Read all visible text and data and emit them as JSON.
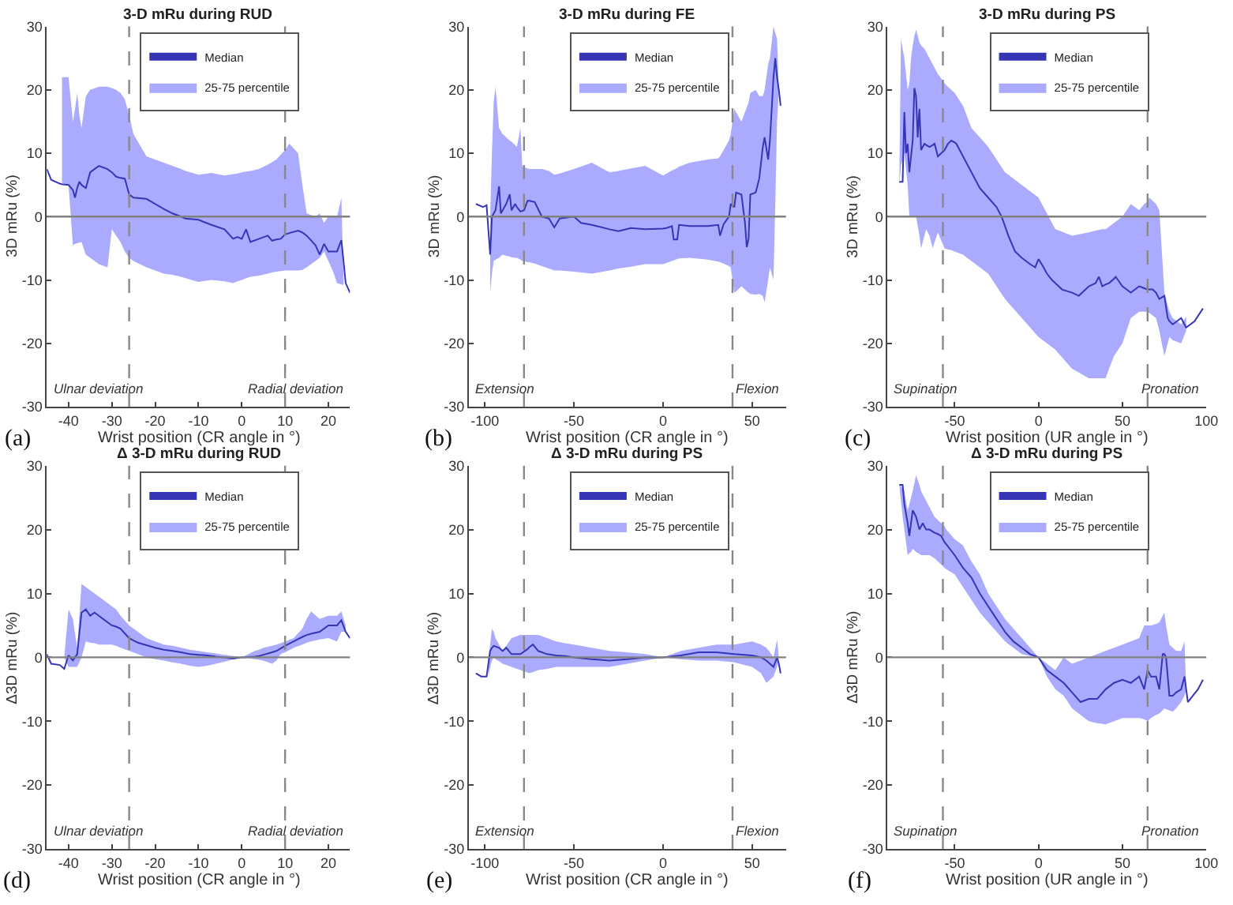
{
  "chart_data": [
    {
      "type": "line",
      "title": "3-D mRu during RUD",
      "xlabel": "Wrist position (CR angle in °)",
      "ylabel": "3D mRu (%)",
      "xlim": [
        -45,
        25
      ],
      "xticks": [
        -40,
        -30,
        -20,
        -10,
        0,
        10,
        20
      ],
      "ylim": [
        -30,
        30
      ],
      "yticks": [
        -30,
        -20,
        -10,
        0,
        10,
        20,
        30
      ],
      "grid": false,
      "legend": "top",
      "annotations": [
        "Ulnar deviation",
        "Radial deviation",
        "(a)"
      ],
      "ref_lines": [
        {
          "axis": "x",
          "value": -26,
          "color": "#888888",
          "line_style": "dashed"
        },
        {
          "axis": "x",
          "value": 10,
          "color": "#888888",
          "line_style": "dashed"
        },
        {
          "axis": "y",
          "value": 0,
          "color": "#808080",
          "line_style": "solid"
        }
      ],
      "series": [
        {
          "name": "Median",
          "color": "#3535b5",
          "x": [
            -45,
            -44,
            -42,
            -41.5,
            -40,
            -39,
            -38.5,
            -38,
            -37.5,
            -37,
            -36,
            -35,
            -33,
            -31,
            -30,
            -29,
            -28,
            -27,
            -26,
            -25,
            -22,
            -20,
            -18,
            -16,
            -14,
            -13,
            -10,
            -7,
            -4,
            -2,
            -1,
            0,
            1,
            2,
            4,
            6,
            7,
            8,
            9,
            10,
            11,
            13,
            14,
            15,
            17,
            18,
            19,
            20,
            21,
            22,
            23,
            23.5,
            24,
            25
          ],
          "values": [
            7.5,
            5.8,
            5.2,
            5.1,
            5,
            4.2,
            3,
            4.5,
            5.5,
            5,
            4.5,
            7,
            8,
            7.5,
            7,
            6.3,
            6.1,
            6,
            3.5,
            3,
            2.8,
            2,
            1.2,
            0.5,
            0,
            -0.3,
            -0.5,
            -1.3,
            -2,
            -3.5,
            -3.2,
            -3.5,
            -2,
            -4,
            -3.5,
            -3,
            -3.8,
            -3.6,
            -3.5,
            -2.8,
            -2.6,
            -2.2,
            -2.5,
            -3,
            -4.5,
            -6,
            -4.3,
            -5.5,
            -5.5,
            -5.5,
            -3.7,
            -7,
            -10.5,
            -12
          ],
          "lower": [
            null,
            null,
            null,
            5,
            5,
            -4.5,
            -4.3,
            -4.2,
            -4.1,
            -4,
            -6,
            -6.5,
            -7.5,
            -8,
            -2,
            -3,
            -4,
            -5.5,
            -6.5,
            -7,
            -8,
            -8.5,
            -9,
            -9.2,
            -9.5,
            -9.7,
            -10.3,
            -10,
            -10.2,
            -10.5,
            -10.2,
            -10,
            -9.7,
            -9.5,
            -9.3,
            -9,
            -8.8,
            -8.7,
            -8.6,
            -8.5,
            -8.5,
            -8.5,
            -8.4,
            -8,
            -7,
            -6.5,
            -5.5,
            -7,
            -8.5,
            -10.5,
            -10.7,
            -10.8,
            null,
            null
          ],
          "upper": [
            null,
            null,
            null,
            22,
            22,
            15,
            17,
            19.5,
            16,
            14,
            19,
            20,
            20.5,
            20.5,
            20.3,
            20,
            19.5,
            18.5,
            16,
            13,
            9.5,
            9,
            8.5,
            8,
            7.5,
            7.2,
            6.6,
            6.9,
            6.5,
            6.7,
            6.8,
            7,
            7.1,
            7.2,
            7.5,
            8.2,
            8.6,
            9,
            9.8,
            10.5,
            11.5,
            10,
            5,
            0.5,
            0,
            0.5,
            -1,
            0,
            0.2,
            0,
            3,
            -10,
            null,
            null
          ]
        },
        {
          "name": "25-75 percentile",
          "type": "area",
          "color": "#aaaaff"
        }
      ]
    },
    {
      "type": "line",
      "title": "3-D mRu during FE",
      "xlabel": "Wrist position (CR angle in °)",
      "ylabel": "3D mRu (%)",
      "xlim": [
        -109,
        69
      ],
      "xticks": [
        -100,
        -50,
        0,
        50
      ],
      "ylim": [
        -30,
        30
      ],
      "yticks": [
        -30,
        -20,
        -10,
        0,
        10,
        20,
        30
      ],
      "grid": false,
      "legend": "top",
      "annotations": [
        "Extension",
        "Flexion",
        "(b)"
      ],
      "ref_lines": [
        {
          "axis": "x",
          "value": -78,
          "color": "#888888",
          "line_style": "dashed"
        },
        {
          "axis": "x",
          "value": 39,
          "color": "#888888",
          "line_style": "dashed"
        },
        {
          "axis": "y",
          "value": 0,
          "color": "#808080",
          "line_style": "solid"
        }
      ],
      "series": [
        {
          "name": "Median",
          "color": "#3535b5",
          "x": [
            -105,
            -101,
            -99,
            -97,
            -96,
            -95,
            -94,
            -92,
            -91,
            -90,
            -89,
            -88,
            -86,
            -85,
            -83,
            -82,
            -80,
            -79,
            -78,
            -76,
            -75,
            -72,
            -68,
            -64,
            -61,
            -58,
            -50,
            -46,
            -40,
            -30,
            -25,
            -18,
            -10,
            0,
            2,
            5,
            6,
            8,
            9,
            15,
            25,
            31,
            32,
            34,
            37,
            38,
            40,
            41,
            44,
            46,
            47,
            48,
            49,
            52,
            54,
            56,
            57,
            59,
            60,
            62,
            63,
            64,
            65,
            66
          ],
          "values": [
            2,
            1.5,
            1.8,
            -6,
            0,
            0.5,
            1,
            4.8,
            0.5,
            1,
            1.5,
            2,
            3.5,
            1,
            2,
            1.5,
            0.8,
            0.9,
            1,
            2.5,
            2.5,
            2.3,
            0,
            -0.3,
            -1.7,
            -0.3,
            0,
            -1,
            -1.3,
            -2,
            -2.3,
            -1.8,
            -2,
            -1.9,
            -1.8,
            -1.5,
            -3.6,
            -3.6,
            -1.3,
            -1.5,
            -1.5,
            -1.3,
            -3,
            -1.2,
            0,
            2,
            1.5,
            3.8,
            3.5,
            -1,
            -4.8,
            -3.5,
            3.5,
            3.8,
            6,
            11,
            12.5,
            9,
            12,
            22,
            25,
            22,
            20,
            17.5
          ],
          "lower": [
            null,
            null,
            null,
            -12,
            -9,
            -7,
            -6.8,
            -6.5,
            -6.2,
            -6,
            -6.1,
            -6.2,
            -6.3,
            -6.4,
            -6.5,
            -6.5,
            -6.8,
            -7,
            -7,
            -7.2,
            -7.2,
            -7.4,
            -7.8,
            -8.2,
            -8.5,
            -8.5,
            -8.7,
            -8.8,
            -9,
            -8.5,
            -8.2,
            -7.9,
            -7.5,
            -7.5,
            -7.3,
            -7,
            -6.9,
            -6.7,
            -6.6,
            -6.5,
            -6.8,
            -7.1,
            -7.2,
            -7.4,
            -7.8,
            -8,
            -12,
            -11.8,
            -11,
            -11.5,
            -11.8,
            -12,
            -12.2,
            -12.3,
            -12.2,
            -12.5,
            -13.5,
            -10,
            -8,
            -10,
            2,
            15,
            20,
            null
          ],
          "upper": [
            null,
            null,
            null,
            0,
            10,
            18,
            20.5,
            14,
            13.5,
            13,
            12.8,
            12.5,
            12,
            11.8,
            11.3,
            11,
            14,
            8,
            7.8,
            7.6,
            7.5,
            7.5,
            7.5,
            7.2,
            6.6,
            6.8,
            7.5,
            7.9,
            8.5,
            7,
            7.2,
            7.6,
            8,
            6.5,
            6.8,
            7.3,
            7.4,
            7.7,
            7.9,
            8.5,
            9,
            9.2,
            9.5,
            10.5,
            12,
            13,
            17,
            16.5,
            15,
            16.5,
            17.2,
            18,
            19.5,
            20,
            19,
            19,
            20,
            24,
            25,
            30,
            29,
            28,
            20,
            null
          ]
        },
        {
          "name": "25-75 percentile",
          "type": "area",
          "color": "#aaaaff"
        }
      ]
    },
    {
      "type": "line",
      "title": "3-D mRu during PS",
      "xlabel": "Wrist position (UR angle in °)",
      "ylabel": "3D mRu (%)",
      "xlim": [
        -90,
        100
      ],
      "xticks": [
        -50,
        0,
        50,
        100
      ],
      "ylim": [
        -30,
        30
      ],
      "yticks": [
        -30,
        -20,
        -10,
        0,
        10,
        20,
        30
      ],
      "grid": false,
      "legend": "top",
      "annotations": [
        "Supination",
        "Pronation",
        "(c)"
      ],
      "ref_lines": [
        {
          "axis": "x",
          "value": -57,
          "color": "#888888",
          "line_style": "dashed"
        },
        {
          "axis": "x",
          "value": 65,
          "color": "#888888",
          "line_style": "dashed"
        },
        {
          "axis": "y",
          "value": 0,
          "color": "#808080",
          "line_style": "solid"
        }
      ],
      "series": [
        {
          "name": "Median",
          "color": "#3535b5",
          "x": [
            -83,
            -82,
            -81,
            -80,
            -79,
            -78,
            -77,
            -76,
            -75,
            -74,
            -73,
            -72,
            -71,
            -70,
            -68,
            -67,
            -65,
            -63,
            -62,
            -60,
            -58,
            -56,
            -54,
            -52,
            -50,
            -49,
            -45,
            -40,
            -35,
            -30,
            -25,
            -22,
            -20,
            -18,
            -14,
            -10,
            -5,
            -2,
            0,
            3,
            5,
            8,
            10,
            14,
            20,
            24,
            30,
            34,
            36,
            38,
            40,
            42,
            45,
            46,
            50,
            55,
            60,
            63,
            65,
            66,
            68,
            70,
            72,
            75,
            77,
            78,
            80,
            85,
            88,
            93,
            98
          ],
          "values": [
            5.5,
            5.5,
            5.5,
            16.5,
            10,
            11.5,
            7,
            9.5,
            12,
            20.3,
            19,
            12.5,
            17,
            10.5,
            11.5,
            11.3,
            11,
            11.3,
            11.5,
            9.5,
            10,
            10.5,
            11.5,
            12,
            11.7,
            11.5,
            9.5,
            7,
            4.5,
            3,
            1.5,
            0,
            -1.5,
            -3,
            -5.5,
            -6.5,
            -7.5,
            -8,
            -6.7,
            -8,
            -9,
            -10,
            -10.5,
            -11.5,
            -12,
            -12.5,
            -11,
            -10.5,
            -9.5,
            -11,
            -10.7,
            -10.5,
            -9.8,
            -9.5,
            -11,
            -12,
            -11,
            -11.3,
            -11.5,
            -11.5,
            -11.5,
            -12,
            -13,
            -12.5,
            -16,
            -16.5,
            -17,
            -16,
            -17.5,
            -16.5,
            -14.5
          ],
          "lower": [
            5,
            8,
            9,
            10,
            7.5,
            5,
            0,
            0,
            0,
            0,
            0,
            -1.5,
            -3,
            -5,
            -3,
            -2,
            -3,
            -5,
            -4,
            -2.5,
            -3.8,
            -5,
            -5.2,
            -5.3,
            -5.5,
            -5.6,
            -6,
            -7,
            -8,
            -9,
            -11,
            -12.2,
            -13,
            -13.6,
            -14.8,
            -16,
            -17.5,
            -18.4,
            -19,
            -19.6,
            -20,
            -20.6,
            -21,
            -22.2,
            -24,
            -24.6,
            -25.5,
            -25.5,
            -25.5,
            -25.5,
            -25.5,
            -24,
            -22,
            -21.6,
            -20,
            -16,
            -15,
            -15,
            -15,
            -15.2,
            -15.6,
            -16,
            -18,
            -22,
            -20,
            -19,
            -19.5,
            -20,
            -18,
            null,
            null
          ],
          "upper": [
            5,
            28,
            26.5,
            25,
            22.5,
            20,
            21,
            25,
            27,
            28.5,
            29.5,
            28.5,
            27.5,
            27,
            26.5,
            26,
            25,
            24,
            23.5,
            22.5,
            21.8,
            21,
            20.5,
            20,
            19.5,
            19.1,
            17.5,
            14,
            12.5,
            11,
            9,
            7.8,
            7,
            6.6,
            5.8,
            5,
            4,
            3.4,
            3,
            1.5,
            0.5,
            -1,
            -2,
            -2.4,
            -3,
            -2.8,
            -2.5,
            -2.2,
            -2.1,
            -2,
            -2,
            -1.6,
            -1,
            -0.8,
            0,
            2,
            1,
            2,
            2.3,
            3,
            2.5,
            2,
            1,
            -12,
            -14,
            -15,
            -16,
            -17,
            -15.8,
            null,
            null
          ]
        },
        {
          "name": "25-75 percentile",
          "type": "area",
          "color": "#aaaaff"
        }
      ]
    },
    {
      "type": "line",
      "title": "Δ 3-D mRu during RUD",
      "xlabel": "Wrist position (CR angle in °)",
      "ylabel": "Δ3D mRu (%)",
      "xlim": [
        -45,
        25
      ],
      "xticks": [
        -40,
        -30,
        -20,
        -10,
        0,
        10,
        20
      ],
      "ylim": [
        -30,
        30
      ],
      "yticks": [
        -30,
        -20,
        -10,
        0,
        10,
        20,
        30
      ],
      "grid": false,
      "legend": "top",
      "annotations": [
        "Ulnar deviation",
        "Radial deviation",
        "(d)"
      ],
      "ref_lines": [
        {
          "axis": "x",
          "value": -26,
          "color": "#888888",
          "line_style": "dashed"
        },
        {
          "axis": "x",
          "value": 10,
          "color": "#888888",
          "line_style": "dashed"
        },
        {
          "axis": "y",
          "value": 0,
          "color": "#808080",
          "line_style": "solid"
        }
      ],
      "series": [
        {
          "name": "Median",
          "color": "#3535b5",
          "x": [
            -45,
            -44,
            -42,
            -41,
            -40,
            -39,
            -38,
            -37,
            -36,
            -35,
            -34,
            -33,
            -32,
            -30,
            -29,
            -28,
            -26,
            -24,
            -22,
            -20,
            -18,
            -16,
            -14,
            -12,
            -10,
            -8,
            -6,
            -4,
            -3,
            -2,
            0,
            3,
            4,
            5,
            7,
            8,
            9,
            10,
            12,
            14,
            15,
            16,
            18,
            20,
            22,
            23,
            24,
            25
          ],
          "values": [
            0.5,
            -1,
            -1.2,
            -1.8,
            0.3,
            -0.5,
            0.5,
            7,
            7.5,
            6.5,
            7,
            6.5,
            6,
            5,
            4.8,
            4.5,
            3,
            2.3,
            1.9,
            1.5,
            1.2,
            1,
            0.8,
            0.5,
            0.4,
            0.3,
            0.1,
            0,
            -0.1,
            -0.2,
            0,
            0.1,
            0.2,
            0.4,
            0.8,
            1,
            1.4,
            1.8,
            2.5,
            3.2,
            3.5,
            3.7,
            4,
            5,
            5,
            5.8,
            4,
            3
          ],
          "lower": [
            null,
            null,
            null,
            0,
            -1.5,
            -1.5,
            -1.5,
            0,
            2.5,
            2.3,
            2.2,
            2,
            2,
            2,
            1.8,
            1.5,
            1,
            0.5,
            0,
            -0.3,
            -0.5,
            -0.8,
            -1,
            -1.3,
            -1.5,
            -1.3,
            -1,
            -0.7,
            -0.5,
            -0.3,
            0,
            -0.3,
            -0.4,
            -0.5,
            -1,
            -0.5,
            0.5,
            0.8,
            1.5,
            2,
            2.3,
            2.5,
            2.8,
            3,
            2.5,
            4,
            4,
            null
          ],
          "upper": [
            null,
            null,
            null,
            0,
            7.5,
            6,
            1.5,
            11.5,
            11,
            10.5,
            10,
            9.5,
            9,
            8,
            7.5,
            6.5,
            5,
            4,
            3,
            2.5,
            2,
            1.8,
            1.5,
            1.2,
            1,
            0.8,
            0.6,
            0.4,
            0.3,
            0.2,
            0,
            1,
            1.2,
            1.5,
            1.8,
            2,
            2.2,
            2.5,
            3,
            4.5,
            6,
            7.2,
            6,
            6.5,
            6.5,
            7.2,
            5,
            null
          ]
        },
        {
          "name": "25-75 percentile",
          "type": "area",
          "color": "#aaaaff"
        }
      ]
    },
    {
      "type": "line",
      "title": "Δ 3-D mRu during PS",
      "xlabel": "Wrist position (CR angle in °)",
      "ylabel": "Δ3D mRu (%)",
      "xlim": [
        -109,
        69
      ],
      "xticks": [
        -100,
        -50,
        0,
        50
      ],
      "ylim": [
        -30,
        30
      ],
      "yticks": [
        -30,
        -20,
        -10,
        0,
        10,
        20,
        30
      ],
      "grid": false,
      "legend": "top",
      "annotations": [
        "Extension",
        "Flexion",
        "(e)"
      ],
      "ref_lines": [
        {
          "axis": "x",
          "value": -78,
          "color": "#888888",
          "line_style": "dashed"
        },
        {
          "axis": "x",
          "value": 39,
          "color": "#888888",
          "line_style": "dashed"
        },
        {
          "axis": "y",
          "value": 0,
          "color": "#808080",
          "line_style": "solid"
        }
      ],
      "series": [
        {
          "name": "Median",
          "color": "#3535b5",
          "x": [
            -105,
            -102,
            -99,
            -98,
            -97,
            -96,
            -95,
            -94,
            -92,
            -90,
            -88,
            -85,
            -80,
            -76,
            -75,
            -73,
            -70,
            -65,
            -60,
            -55,
            -50,
            -40,
            -30,
            -20,
            -10,
            0,
            10,
            20,
            30,
            40,
            50,
            55,
            58,
            60,
            62,
            64,
            65,
            66
          ],
          "values": [
            -2.5,
            -3,
            -3,
            -1,
            1,
            1.5,
            1.8,
            1.7,
            1.5,
            1,
            1.5,
            0.5,
            0.5,
            1.3,
            1.6,
            2,
            1,
            0.5,
            0.3,
            0.2,
            0,
            -0.3,
            -0.5,
            -0.3,
            0,
            0,
            0.3,
            0.8,
            0.8,
            0.5,
            0.3,
            0,
            -0.5,
            -1,
            -1.5,
            0,
            -1,
            -2.5
          ],
          "lower": [
            null,
            null,
            null,
            -3,
            -1.5,
            -0.5,
            0,
            -0.3,
            -0.6,
            -1,
            -1.2,
            -1.5,
            -2,
            -2.4,
            -2.5,
            -2.3,
            -2,
            -1.8,
            -1.5,
            -1.5,
            -1.5,
            -1.5,
            -1.5,
            -1,
            -0.5,
            0,
            -0.3,
            -0.5,
            -0.5,
            -0.8,
            -1.5,
            -2.5,
            -4,
            -3.5,
            -3,
            -1.5,
            0,
            null
          ],
          "upper": [
            null,
            null,
            null,
            0,
            2,
            4.5,
            4,
            3,
            2,
            1,
            1.8,
            3,
            3.5,
            3.5,
            3.5,
            3.5,
            3.5,
            3,
            2.5,
            2.2,
            2,
            1.5,
            1,
            0.8,
            0.5,
            0,
            1,
            1.5,
            2,
            2,
            2.5,
            2,
            1.5,
            0.8,
            0,
            2.8,
            0,
            null
          ]
        },
        {
          "name": "25-75 percentile",
          "type": "area",
          "color": "#aaaaff"
        }
      ]
    },
    {
      "type": "line",
      "title": "Δ 3-D mRu during PS",
      "xlabel": "Wrist position (UR angle in °)",
      "ylabel": "Δ3D mRu (%)",
      "xlim": [
        -90,
        100
      ],
      "xticks": [
        -50,
        0,
        50,
        100
      ],
      "ylim": [
        -30,
        30
      ],
      "yticks": [
        -30,
        -20,
        -10,
        0,
        10,
        20,
        30
      ],
      "grid": false,
      "legend": "top",
      "annotations": [
        "Supination",
        "Pronation",
        "(f)"
      ],
      "ref_lines": [
        {
          "axis": "x",
          "value": -57,
          "color": "#888888",
          "line_style": "dashed"
        },
        {
          "axis": "x",
          "value": 65,
          "color": "#888888",
          "line_style": "dashed"
        },
        {
          "axis": "y",
          "value": 0,
          "color": "#808080",
          "line_style": "solid"
        }
      ],
      "series": [
        {
          "name": "Median",
          "color": "#3535b5",
          "x": [
            -83,
            -81,
            -80,
            -78,
            -77,
            -76,
            -75,
            -73,
            -71,
            -70,
            -69,
            -67,
            -66,
            -65,
            -62,
            -60,
            -58,
            -56,
            -55,
            -50,
            -45,
            -40,
            -35,
            -30,
            -25,
            -20,
            -15,
            -10,
            -5,
            0,
            5,
            10,
            15,
            20,
            25,
            30,
            35,
            40,
            45,
            50,
            55,
            60,
            63,
            65,
            67,
            70,
            72,
            74,
            75,
            76,
            78,
            80,
            82,
            85,
            87,
            88,
            89,
            92,
            95,
            98
          ],
          "values": [
            27,
            27,
            24,
            21,
            19,
            21,
            23,
            22,
            20,
            20.5,
            21,
            20,
            20,
            20,
            19.5,
            19.3,
            19,
            18,
            17.7,
            16,
            14,
            12.5,
            10,
            8,
            6,
            4,
            2.5,
            1.5,
            0.5,
            0,
            -2,
            -3,
            -4,
            -5.5,
            -7,
            -6.5,
            -6.5,
            -5,
            -4,
            -3.5,
            -4,
            -3,
            -5,
            -2,
            -3,
            -3,
            -5,
            0.5,
            0.5,
            0,
            -6,
            -6,
            -5.5,
            -5,
            -3,
            -5,
            -7,
            -6,
            -5,
            -3.5
          ],
          "lower": [
            27,
            22,
            20,
            16,
            16.3,
            16.5,
            17,
            16.5,
            16.2,
            16,
            16,
            16,
            16,
            16,
            15.5,
            15,
            14.5,
            14,
            13.8,
            13,
            11,
            9,
            7,
            5.5,
            4,
            2.5,
            1.5,
            0.5,
            0.2,
            0,
            -3,
            -5,
            -6,
            -8,
            -9,
            -10,
            -10.3,
            -10.5,
            -10,
            -9.5,
            -9.5,
            -9.5,
            -9.7,
            -10,
            -9.5,
            -9,
            -8.8,
            -8.3,
            -8,
            -8.1,
            -8.3,
            -8.5,
            -8,
            -7,
            -6,
            -5,
            null,
            null,
            null,
            null
          ],
          "upper": [
            27,
            26.5,
            26,
            23,
            24,
            25,
            26,
            28.5,
            27,
            26,
            25.5,
            24.5,
            24,
            23.5,
            22,
            21.5,
            21,
            20.5,
            20,
            18.5,
            17.5,
            15,
            13,
            10,
            8,
            6,
            4.5,
            3,
            1.5,
            0,
            -1,
            -2,
            0,
            -1,
            -0.5,
            0,
            0.5,
            1,
            1.5,
            2,
            2.5,
            3,
            5,
            5,
            5,
            5.2,
            5.5,
            6.5,
            7,
            5,
            2,
            1.5,
            1,
            1,
            2.5,
            -5,
            null,
            null,
            null,
            null
          ]
        },
        {
          "name": "25-75 percentile",
          "type": "area",
          "color": "#aaaaff"
        }
      ]
    }
  ]
}
